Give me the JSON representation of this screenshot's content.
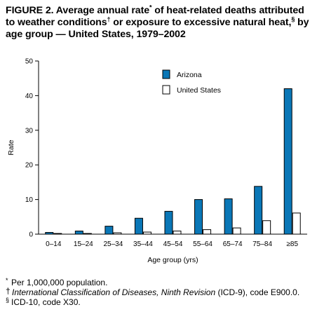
{
  "figure": {
    "title_line1": "FIGURE 2. Average annual rate",
    "title_mark1": "*",
    "title_line1b": " of heat-related deaths attributed to weather conditions",
    "title_mark2": "†",
    "title_line2": " or exposure to excessive natural heat,",
    "title_mark3": "§",
    "title_line3": " by age group — United States, 1979–2002"
  },
  "chart_data": {
    "type": "bar",
    "categories": [
      "0–14",
      "15–24",
      "25–34",
      "35–44",
      "45–54",
      "55–64",
      "65–74",
      "75–84",
      "≥85"
    ],
    "series": [
      {
        "name": "Arizona",
        "values": [
          0.5,
          0.9,
          2.3,
          4.6,
          6.6,
          10.0,
          10.2,
          13.8,
          42.0
        ],
        "color": "#0a77b7"
      },
      {
        "name": "United States",
        "values": [
          0.2,
          0.2,
          0.4,
          0.6,
          0.9,
          1.3,
          1.8,
          3.9,
          6.1
        ],
        "color": "#ffffff"
      }
    ],
    "xlabel": "Age group (yrs)",
    "ylabel": "Rate",
    "ylim": [
      0,
      50
    ],
    "yticks": [
      0,
      10,
      20,
      30,
      40,
      50
    ],
    "grid": false,
    "legend_position": "top-center"
  },
  "footnotes": {
    "fn1_mark": "*",
    "fn1_text": "Per 1,000,000 population.",
    "fn2_mark": "†",
    "fn2_italic": "International Classification of Diseases, Ninth Revision",
    "fn2_text": " (ICD-9), code E900.0.",
    "fn3_mark": "§",
    "fn3_text": "ICD-10, code X30."
  }
}
